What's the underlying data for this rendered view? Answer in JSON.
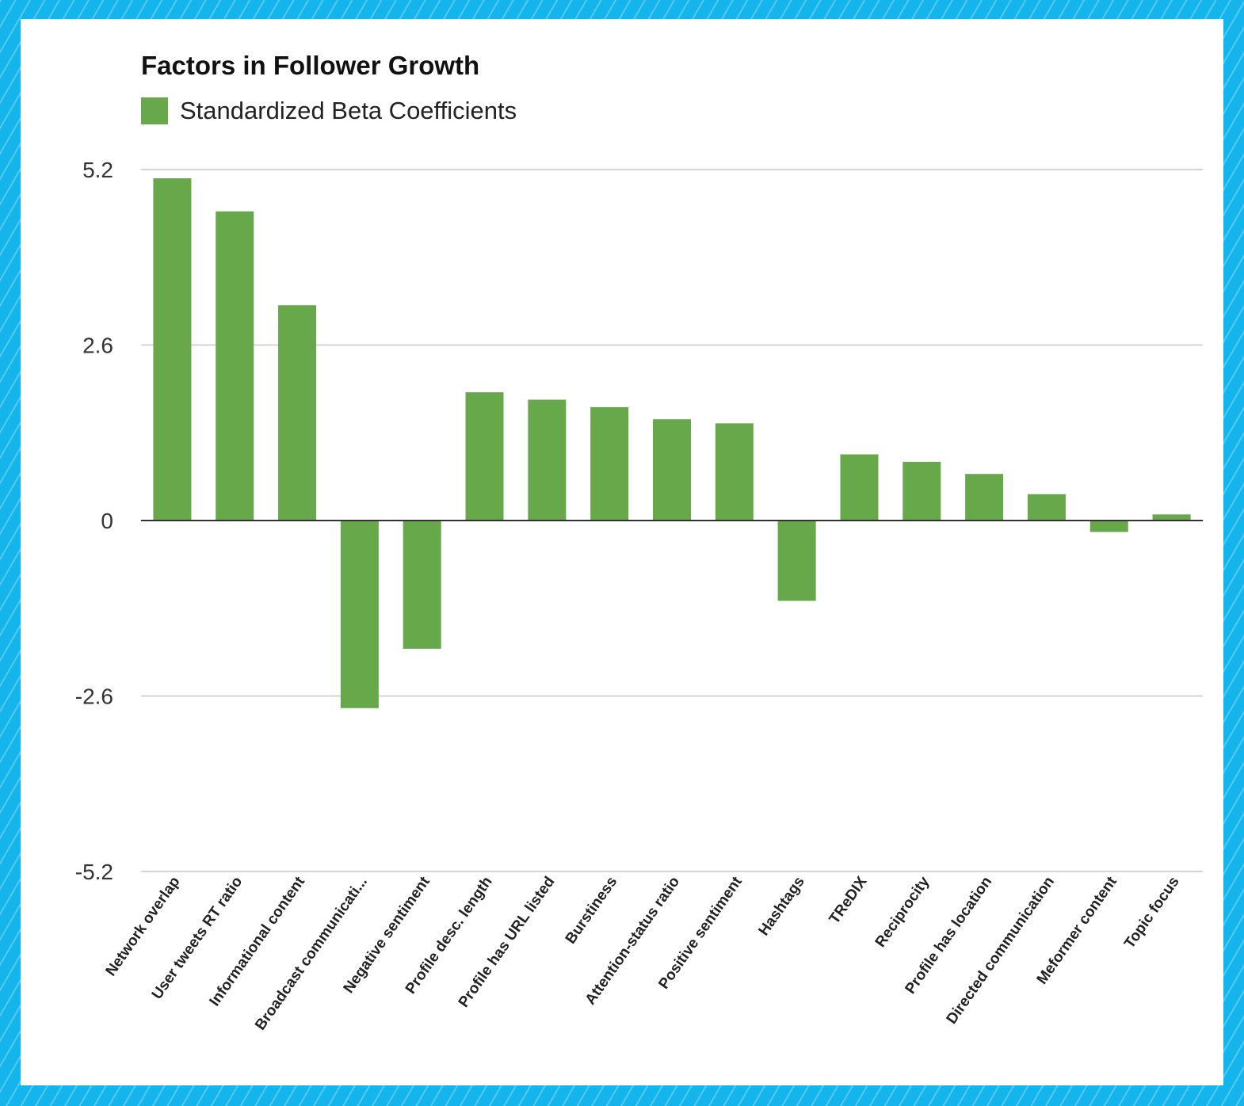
{
  "chart_data": {
    "type": "bar",
    "title": "Factors in Follower Growth",
    "legend": {
      "position": "top-left",
      "entries": [
        "Standardized Beta Coefficients"
      ]
    },
    "xlabel": "",
    "ylabel": "",
    "ylim": [
      -5.2,
      5.2
    ],
    "yticks": [
      "5.2",
      "2.6",
      "0",
      "-2.6",
      "-5.2"
    ],
    "grid": true,
    "color": "#67a84a",
    "categories": [
      "Network overlap",
      "User tweets RT ratio",
      "Informational content",
      "Broadcast communicati...",
      "Negative sentiment",
      "Profile desc. length",
      "Profile has URL listed",
      "Burstiness",
      "Attention-status ratio",
      "Positive sentiment",
      "Hashtags",
      "TReDIX",
      "Reciprocity",
      "Profile has location",
      "Directed communication",
      "Meformer content",
      "Topic focus"
    ],
    "series": [
      {
        "name": "Standardized Beta Coefficients",
        "values": [
          5.07,
          4.58,
          3.19,
          -2.78,
          -1.9,
          1.9,
          1.79,
          1.68,
          1.5,
          1.44,
          -1.19,
          0.98,
          0.87,
          0.69,
          0.39,
          -0.17,
          0.09
        ]
      }
    ]
  }
}
